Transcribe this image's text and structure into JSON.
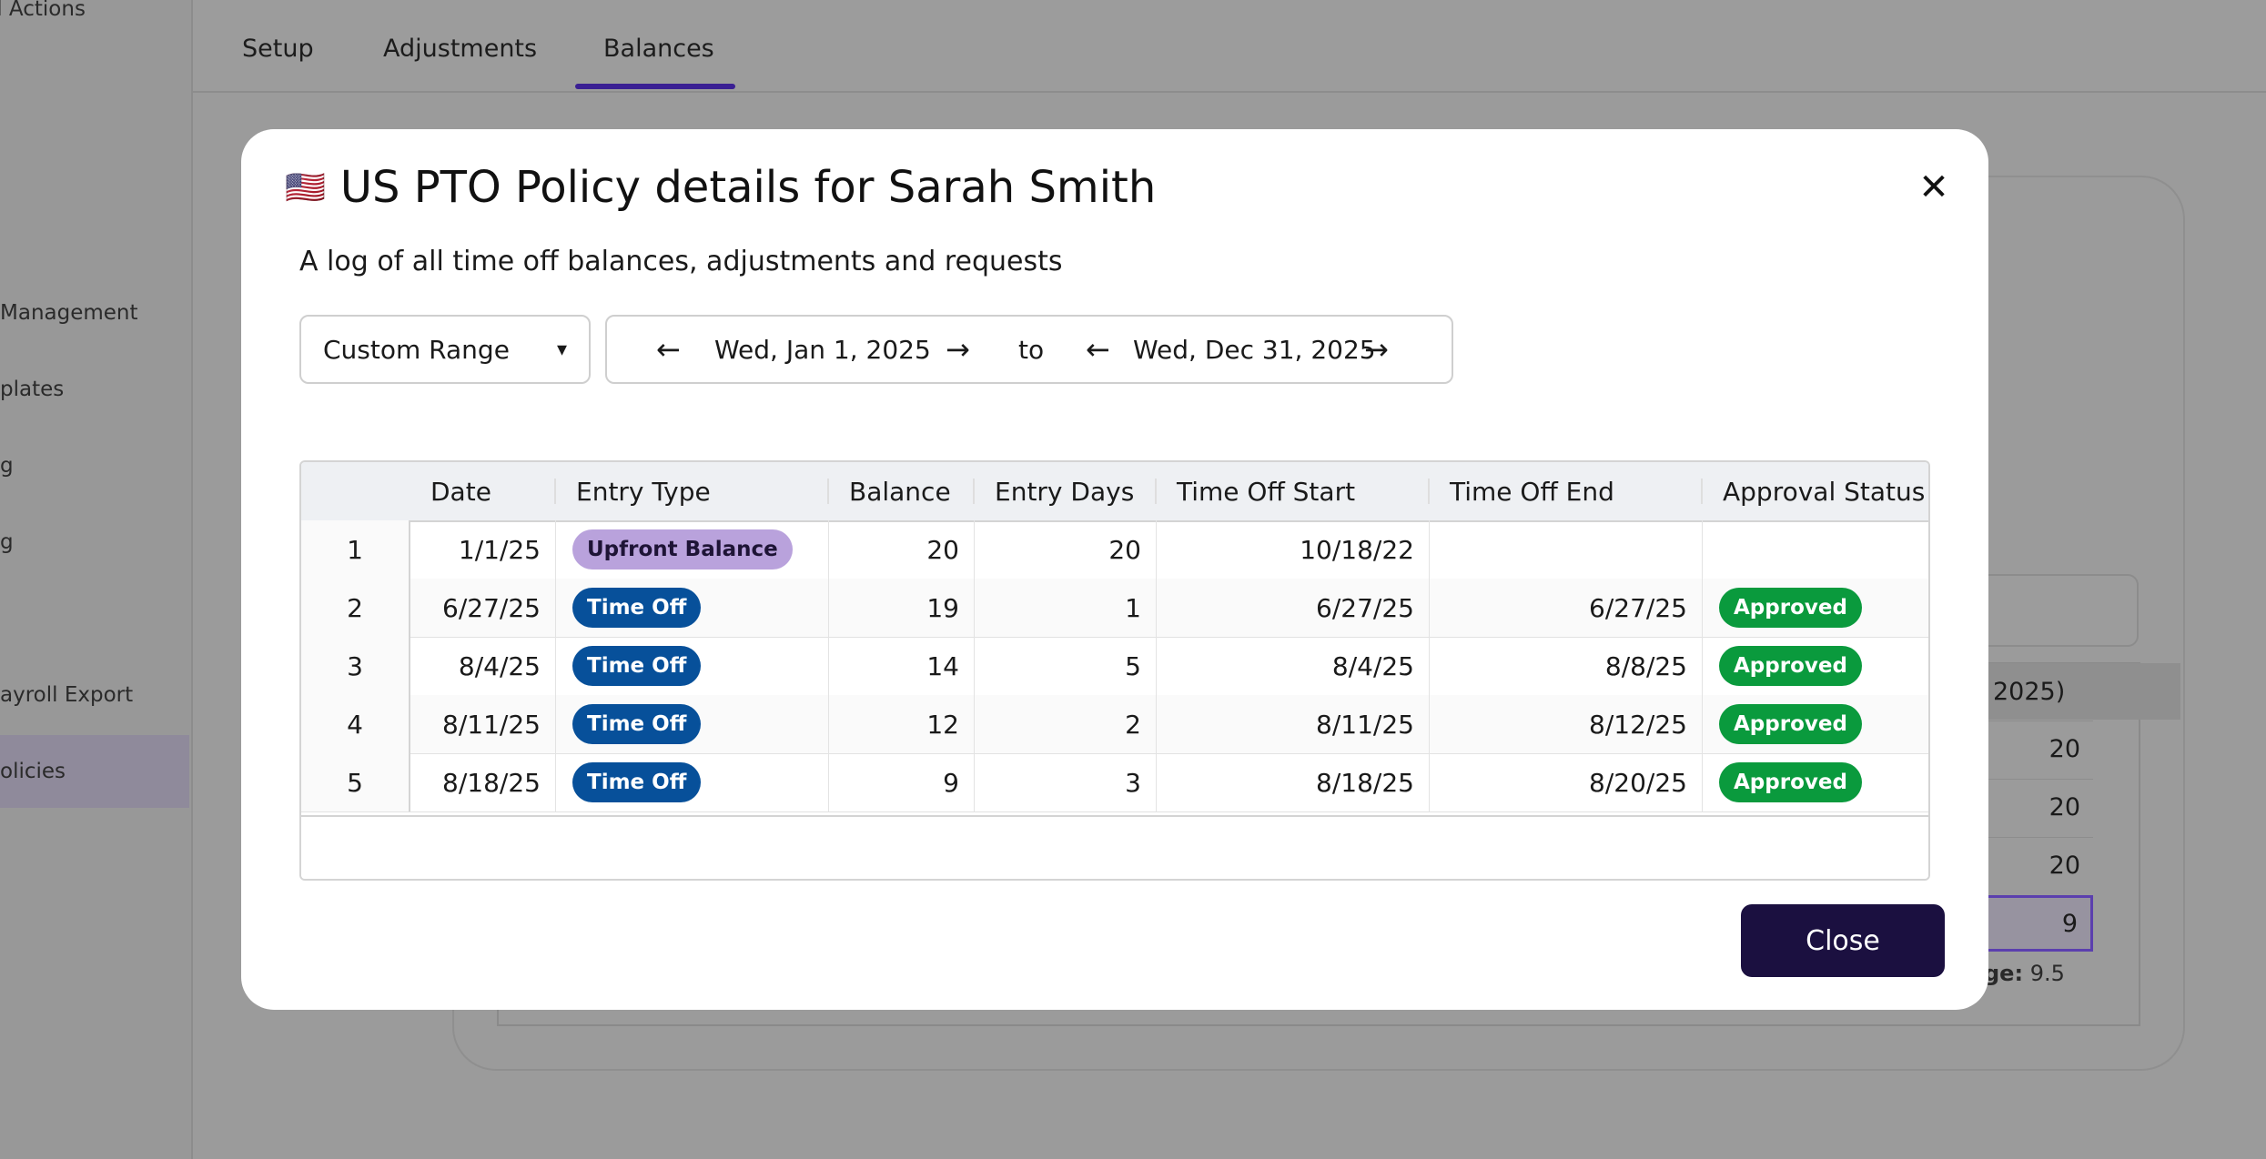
{
  "background": {
    "sidebar_items": [
      {
        "label": "d Actions"
      },
      {
        "label": "Management"
      },
      {
        "label": "plates"
      },
      {
        "label": "g"
      },
      {
        "label": "g"
      },
      {
        "label": "ayroll Export"
      },
      {
        "label": "olicies"
      }
    ],
    "tabs": [
      {
        "label": "Setup"
      },
      {
        "label": "Adjustments"
      },
      {
        "label": "Balances",
        "active": true
      }
    ],
    "table_header_fragment": "2025)",
    "values": [
      "20",
      "20",
      "20",
      "9"
    ],
    "average_label": "ge:",
    "average_value": "9.5"
  },
  "modal": {
    "flag": "🇺🇸",
    "title": "US PTO Policy details for Sarah Smith",
    "subtitle": "A log of all time off balances, adjustments and requests",
    "range_select": {
      "value": "Custom Range",
      "caret": "▾"
    },
    "date_range": {
      "start": "Wed, Jan 1, 2025",
      "to": "to",
      "end": "Wed, Dec 31, 2025",
      "prev_arrow": "←",
      "next_arrow": "→"
    },
    "close_icon": "✕",
    "close_label": "Close",
    "table": {
      "columns": [
        "Date",
        "Entry Type",
        "Balance",
        "Entry Days",
        "Time Off Start",
        "Time Off End",
        "Approval Status"
      ],
      "rows": [
        {
          "index": "1",
          "date": "1/1/25",
          "entry_type": "Upfront Balance",
          "balance": "20",
          "entry_days": "20",
          "start": "10/18/22",
          "end": "",
          "status": ""
        },
        {
          "index": "2",
          "date": "6/27/25",
          "entry_type": "Time Off",
          "balance": "19",
          "entry_days": "1",
          "start": "6/27/25",
          "end": "6/27/25",
          "status": "Approved"
        },
        {
          "index": "3",
          "date": "8/4/25",
          "entry_type": "Time Off",
          "balance": "14",
          "entry_days": "5",
          "start": "8/4/25",
          "end": "8/8/25",
          "status": "Approved"
        },
        {
          "index": "4",
          "date": "8/11/25",
          "entry_type": "Time Off",
          "balance": "12",
          "entry_days": "2",
          "start": "8/11/25",
          "end": "8/12/25",
          "status": "Approved"
        },
        {
          "index": "5",
          "date": "8/18/25",
          "entry_type": "Time Off",
          "balance": "9",
          "entry_days": "3",
          "start": "8/18/25",
          "end": "8/20/25",
          "status": "Approved"
        }
      ]
    },
    "colors": {
      "upfront_pill": "#b9a2dc",
      "timeoff_pill": "#07509a",
      "approved_pill": "#0a9a3d",
      "close_button": "#1b1040",
      "tab_accent": "#3a1f93"
    }
  }
}
